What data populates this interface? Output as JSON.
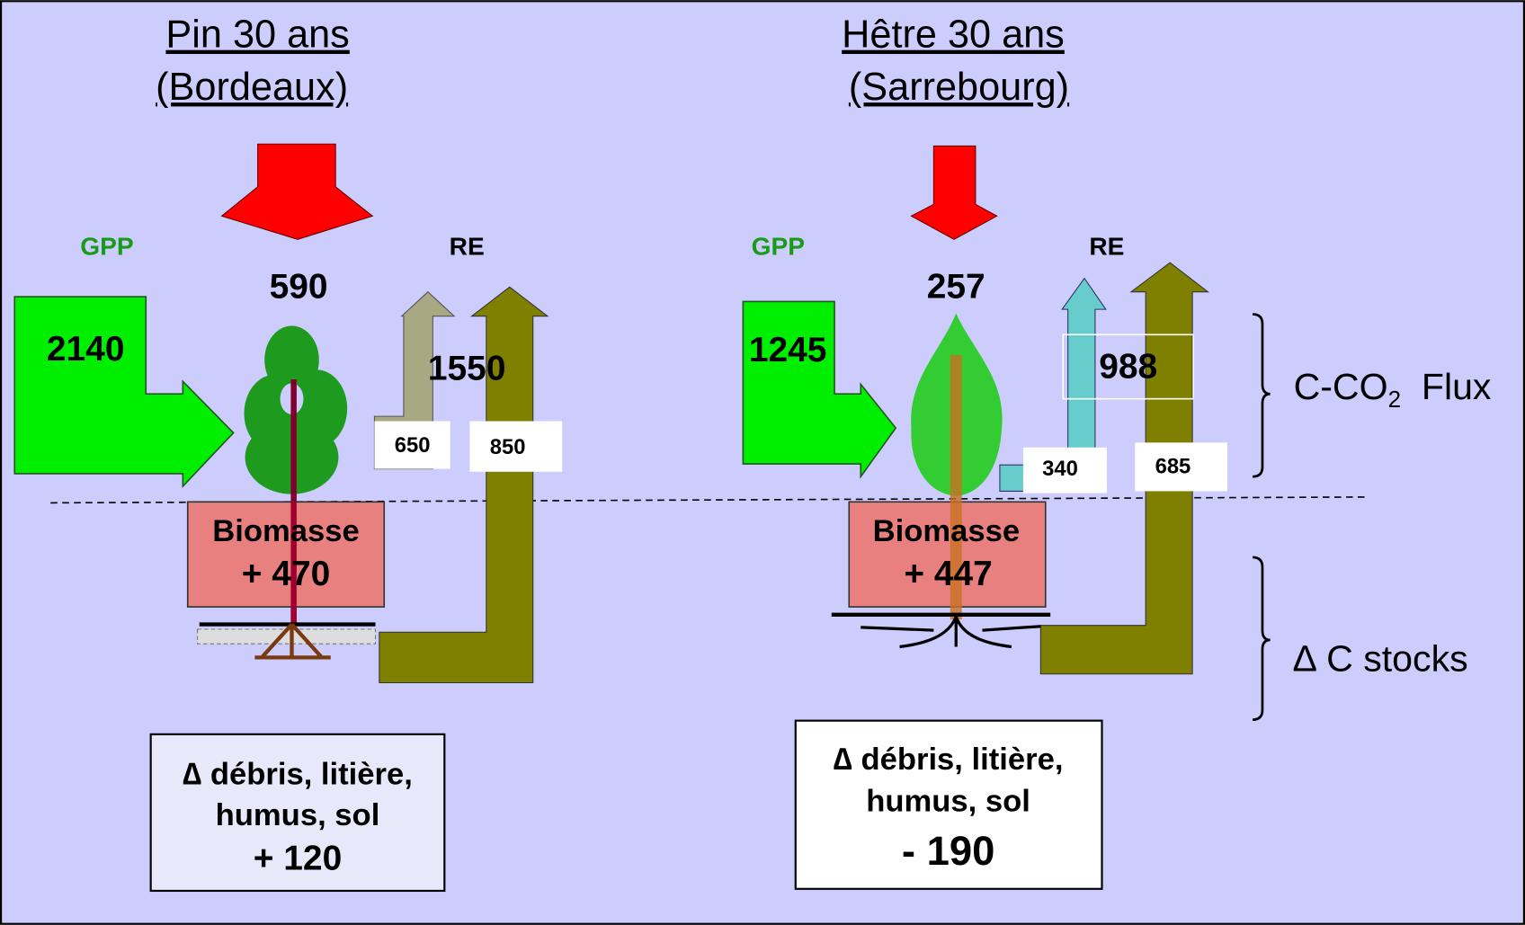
{
  "panels": [
    {
      "title": "Pin  30 ans",
      "subtitle": "(Bordeaux)",
      "gpp_label": "GPP",
      "re_label": "RE",
      "nep": "590",
      "gpp": "2140",
      "re": "1550",
      "re_a": "650",
      "re_h": "850",
      "biomass_label": "Biomasse",
      "biomass": "+ 470",
      "soil_lines": [
        "∆ débris, litière,",
        "humus, sol",
        "+ 120"
      ]
    },
    {
      "title": "Hêtre 30 ans",
      "subtitle": "(Sarrebourg)",
      "gpp_label": "GPP",
      "re_label": "RE",
      "nep": "257",
      "gpp": "1245",
      "re": "988",
      "re_a": "340",
      "re_h": "685",
      "biomass_label": "Biomasse",
      "biomass": "+ 447",
      "soil_lines": [
        "∆ débris, litière,",
        "humus, sol",
        "- 190"
      ]
    }
  ],
  "side": {
    "flux_main": "C-CO",
    "flux_sub": "2",
    "flux_rest": "  Flux",
    "stocks": "∆ C stocks"
  }
}
